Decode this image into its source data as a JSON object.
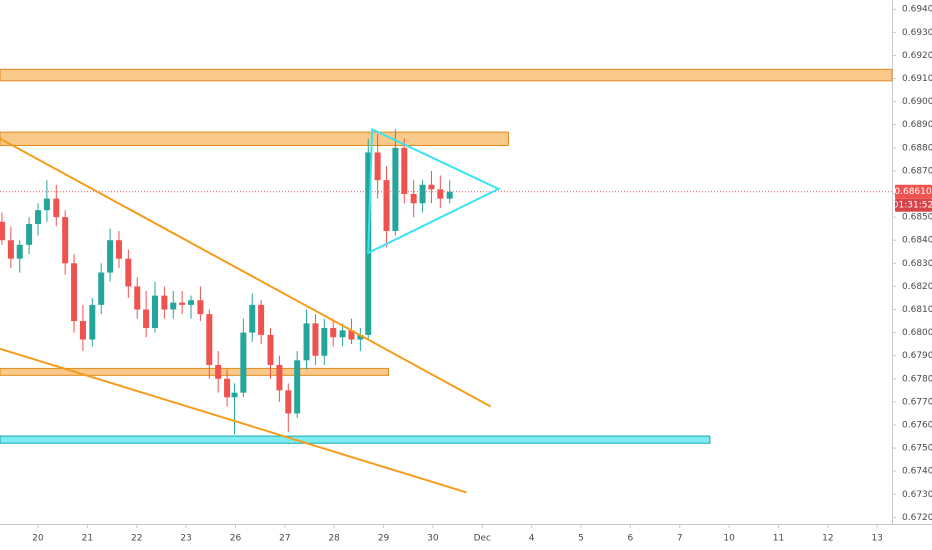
{
  "chart_data": {
    "type": "candlestick",
    "x": [
      -0.73,
      -0.55,
      -0.37,
      -0.18,
      0,
      0.18,
      0.37,
      0.55,
      0.73,
      0.91,
      1.1,
      1.28,
      1.46,
      1.64,
      1.83,
      2.01,
      2.19,
      2.37,
      2.56,
      2.74,
      2.92,
      3.1,
      3.29,
      3.47,
      3.65,
      3.83,
      3.98,
      4.16,
      4.34,
      4.52,
      4.71,
      4.89,
      5.07,
      5.25,
      5.44,
      5.62,
      5.8,
      5.98,
      6.17,
      6.35,
      6.53,
      6.69,
      6.88,
      7.06,
      7.24,
      7.42,
      7.61,
      7.79,
      7.97,
      8.15,
      8.34
    ],
    "open": [
      0.6848,
      0.684,
      0.6832,
      0.6838,
      0.6847,
      0.6853,
      0.6858,
      0.685,
      0.683,
      0.6805,
      0.6797,
      0.6812,
      0.6826,
      0.684,
      0.6832,
      0.682,
      0.681,
      0.6802,
      0.6816,
      0.681,
      0.6813,
      0.6812,
      0.6814,
      0.6808,
      0.6786,
      0.678,
      0.6772,
      0.6774,
      0.68,
      0.6812,
      0.6799,
      0.6786,
      0.6775,
      0.6765,
      0.6788,
      0.6804,
      0.679,
      0.6802,
      0.6798,
      0.6801,
      0.6797,
      0.6799,
      0.6878,
      0.6866,
      0.6844,
      0.688,
      0.686,
      0.6856,
      0.6864,
      0.6862,
      0.6858
    ],
    "high": [
      0.6852,
      0.6846,
      0.684,
      0.685,
      0.6856,
      0.6866,
      0.6864,
      0.6853,
      0.6834,
      0.6812,
      0.6815,
      0.683,
      0.6845,
      0.6844,
      0.6836,
      0.6824,
      0.6818,
      0.6822,
      0.682,
      0.6818,
      0.6818,
      0.6816,
      0.682,
      0.681,
      0.6792,
      0.6784,
      0.6778,
      0.6806,
      0.6817,
      0.6814,
      0.6802,
      0.679,
      0.6778,
      0.6792,
      0.681,
      0.6808,
      0.6806,
      0.6806,
      0.6804,
      0.6806,
      0.6802,
      0.6884,
      0.6886,
      0.6872,
      0.6888,
      0.6884,
      0.6866,
      0.6866,
      0.687,
      0.6868,
      0.6866
    ],
    "low": [
      0.6838,
      0.6828,
      0.6826,
      0.6834,
      0.6842,
      0.6848,
      0.6846,
      0.6825,
      0.68,
      0.6792,
      0.6794,
      0.6808,
      0.6822,
      0.6828,
      0.6815,
      0.6806,
      0.6798,
      0.68,
      0.6806,
      0.6806,
      0.6808,
      0.6806,
      0.6805,
      0.678,
      0.6774,
      0.6768,
      0.6756,
      0.6772,
      0.6796,
      0.6795,
      0.678,
      0.677,
      0.6757,
      0.6763,
      0.6784,
      0.6786,
      0.6786,
      0.6794,
      0.6794,
      0.6795,
      0.6792,
      0.6797,
      0.6858,
      0.6837,
      0.6842,
      0.6856,
      0.685,
      0.6852,
      0.6856,
      0.6854,
      0.6856
    ],
    "close": [
      0.684,
      0.6832,
      0.6838,
      0.6847,
      0.6853,
      0.6858,
      0.685,
      0.683,
      0.6805,
      0.6797,
      0.6812,
      0.6826,
      0.684,
      0.6832,
      0.682,
      0.681,
      0.6802,
      0.6816,
      0.681,
      0.6813,
      0.6812,
      0.6814,
      0.6808,
      0.6786,
      0.678,
      0.6772,
      0.6774,
      0.68,
      0.6812,
      0.6799,
      0.6786,
      0.6775,
      0.6765,
      0.6788,
      0.6804,
      0.679,
      0.6802,
      0.6798,
      0.6801,
      0.6797,
      0.6799,
      0.6878,
      0.6866,
      0.6844,
      0.688,
      0.686,
      0.6856,
      0.6864,
      0.6862,
      0.6858,
      0.6861
    ],
    "up_color": "#26a69a",
    "down_color": "#ef5350",
    "xlim": [
      -0.77,
      17.3
    ],
    "xticks": [
      {
        "value": 0,
        "label": "20"
      },
      {
        "value": 1,
        "label": "21"
      },
      {
        "value": 2,
        "label": "22"
      },
      {
        "value": 3,
        "label": "23"
      },
      {
        "value": 4,
        "label": "26"
      },
      {
        "value": 5,
        "label": "27"
      },
      {
        "value": 6,
        "label": "28"
      },
      {
        "value": 7,
        "label": "29"
      },
      {
        "value": 8,
        "label": "30"
      },
      {
        "value": 9,
        "label": "Dec"
      },
      {
        "value": 10,
        "label": "4"
      },
      {
        "value": 11,
        "label": "5"
      },
      {
        "value": 12,
        "label": "6"
      },
      {
        "value": 13,
        "label": "7"
      },
      {
        "value": 14,
        "label": "10"
      },
      {
        "value": 15,
        "label": "11"
      },
      {
        "value": 16,
        "label": "12"
      },
      {
        "value": 17,
        "label": "13"
      }
    ],
    "ylim": [
      0.6718,
      0.6944
    ],
    "yticks": [
      {
        "value": 0.672,
        "label": "0.67200"
      },
      {
        "value": 0.673,
        "label": "0.67300"
      },
      {
        "value": 0.674,
        "label": "0.67400"
      },
      {
        "value": 0.675,
        "label": "0.67500"
      },
      {
        "value": 0.676,
        "label": "0.67600"
      },
      {
        "value": 0.677,
        "label": "0.67700"
      },
      {
        "value": 0.678,
        "label": "0.67800"
      },
      {
        "value": 0.679,
        "label": "0.67900"
      },
      {
        "value": 0.68,
        "label": "0.68000"
      },
      {
        "value": 0.681,
        "label": "0.68100"
      },
      {
        "value": 0.682,
        "label": "0.68200"
      },
      {
        "value": 0.683,
        "label": "0.68300"
      },
      {
        "value": 0.684,
        "label": "0.68400"
      },
      {
        "value": 0.685,
        "label": "0.68500"
      },
      {
        "value": 0.686,
        "label": "0.68600"
      },
      {
        "value": 0.687,
        "label": "0.68700"
      },
      {
        "value": 0.688,
        "label": "0.68800"
      },
      {
        "value": 0.689,
        "label": "0.68900"
      },
      {
        "value": 0.69,
        "label": "0.69000"
      },
      {
        "value": 0.691,
        "label": "0.69100"
      },
      {
        "value": 0.692,
        "label": "0.69200"
      },
      {
        "value": 0.693,
        "label": "0.69300"
      },
      {
        "value": 0.694,
        "label": "0.69400"
      }
    ],
    "last_price": {
      "value": 0.6861,
      "label": "0.68610"
    },
    "countdown": "01:31:52",
    "zones": [
      {
        "x": [
          -0.77,
          17.3
        ],
        "y": [
          0.6909,
          0.6914
        ],
        "color": "#f9c98a",
        "edge": "#e08a1e"
      },
      {
        "x": [
          -0.77,
          9.53
        ],
        "y": [
          0.6881,
          0.68868
        ],
        "color": "#f9c98a",
        "edge": "#e08a1e"
      },
      {
        "x": [
          -0.77,
          7.1
        ],
        "y": [
          0.67815,
          0.67845
        ],
        "color": "#f9c98a",
        "edge": "#e08a1e"
      },
      {
        "x": [
          -0.77,
          13.61
        ],
        "y": [
          0.67521,
          0.67552
        ],
        "color": "#7fecf2",
        "edge": "#14aab5"
      }
    ],
    "trendlines": [
      {
        "x": [
          -0.77,
          9.17
        ],
        "y": [
          0.6884,
          0.6768
        ],
        "color": "#f59d1b"
      },
      {
        "x": [
          -0.77,
          8.68
        ],
        "y": [
          0.6793,
          0.67308
        ],
        "color": "#f59d1b"
      }
    ],
    "triangle": {
      "x": [
        6.77,
        9.33,
        6.69
      ],
      "y": [
        0.6888,
        0.68622,
        0.68345
      ],
      "color": "#3de3f0"
    }
  }
}
